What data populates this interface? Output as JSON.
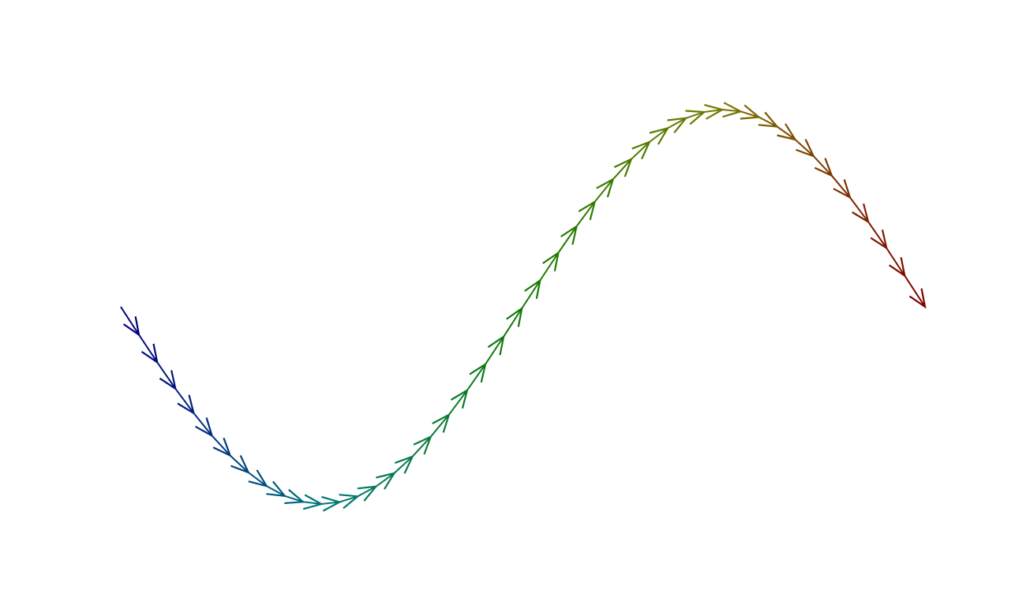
{
  "chart_data": {
    "type": "line",
    "title": "",
    "xlabel": "",
    "ylabel": "",
    "axes_visible": false,
    "grid": false,
    "legend": "none",
    "colormap": [
      "#000080",
      "#007a7a",
      "#117a00",
      "#7a7a00",
      "#800000"
    ],
    "xlim": [
      0,
      6.2832
    ],
    "ylim": [
      -1.2,
      1.2
    ],
    "series": [
      {
        "x": [
          0.0,
          0.1424,
          0.2849,
          0.4273,
          0.5697,
          0.7121,
          0.8546,
          0.997,
          1.1394,
          1.2819,
          1.4243,
          1.5667,
          1.7091,
          1.8516,
          1.994,
          2.1364,
          2.2789,
          2.4213,
          2.5637,
          2.7061,
          2.8486,
          2.991,
          3.1334,
          3.2758,
          3.4183,
          3.5607,
          3.7031,
          3.8456,
          3.988,
          4.1304,
          4.2728,
          4.4153,
          4.5577,
          4.7001,
          4.8426,
          4.985,
          5.1274,
          5.2698,
          5.4123,
          5.5547,
          5.6971,
          5.8396,
          5.982,
          6.1244,
          6.2832
        ],
        "y": [
          0.0,
          -0.142,
          -0.281,
          -0.415,
          -0.539,
          -0.653,
          -0.754,
          -0.84,
          -0.909,
          -0.959,
          -0.989,
          -1.0,
          -0.99,
          -0.961,
          -0.911,
          -0.844,
          -0.759,
          -0.659,
          -0.547,
          -0.423,
          -0.291,
          -0.151,
          -0.008,
          0.134,
          0.274,
          0.408,
          0.533,
          0.647,
          0.749,
          0.836,
          0.906,
          0.957,
          0.988,
          1.0,
          0.991,
          0.962,
          0.914,
          0.848,
          0.764,
          0.665,
          0.555,
          0.431,
          0.298,
          0.158,
          0.0
        ]
      }
    ]
  }
}
